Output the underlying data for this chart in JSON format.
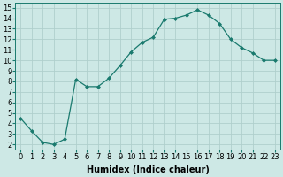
{
  "x": [
    0,
    1,
    2,
    3,
    4,
    5,
    6,
    7,
    8,
    9,
    10,
    11,
    12,
    13,
    14,
    15,
    16,
    17,
    18,
    19,
    20,
    21,
    22,
    23
  ],
  "y": [
    4.5,
    3.3,
    2.2,
    2.0,
    2.5,
    8.2,
    7.5,
    7.5,
    8.3,
    9.5,
    10.8,
    11.7,
    12.2,
    13.9,
    14.0,
    14.3,
    14.8,
    14.3,
    13.5,
    12.0,
    11.2,
    10.7,
    10.0,
    10.0
  ],
  "line_color": "#1a7a6e",
  "marker": "D",
  "marker_size": 2.0,
  "bg_color": "#cde8e5",
  "grid_color": "#b0cfcc",
  "xlabel": "Humidex (Indice chaleur)",
  "xlim": [
    -0.5,
    23.5
  ],
  "ylim": [
    1.5,
    15.5
  ],
  "xtick_labels": [
    "0",
    "1",
    "2",
    "3",
    "4",
    "5",
    "6",
    "7",
    "8",
    "9",
    "10",
    "11",
    "12",
    "13",
    "14",
    "15",
    "16",
    "17",
    "18",
    "19",
    "20",
    "21",
    "22",
    "23"
  ],
  "ytick_vals": [
    2,
    3,
    4,
    5,
    6,
    7,
    8,
    9,
    10,
    11,
    12,
    13,
    14,
    15
  ],
  "xlabel_fontsize": 7,
  "tick_fontsize": 6
}
